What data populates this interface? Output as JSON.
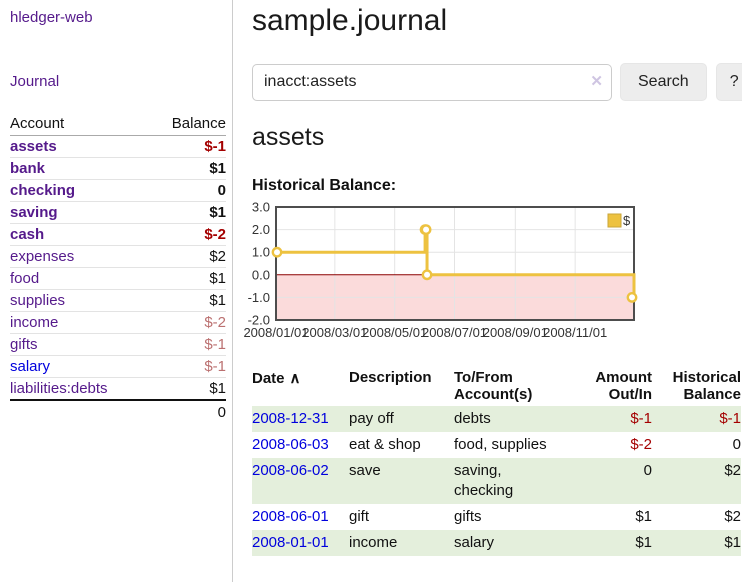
{
  "app": {
    "brand": "hledger-web",
    "nav": {
      "journal": "Journal"
    }
  },
  "sidebar": {
    "header": {
      "account": "Account",
      "balance": "Balance"
    },
    "accounts": [
      {
        "name": "assets",
        "balance": "$-1"
      },
      {
        "name": "bank",
        "balance": "$1"
      },
      {
        "name": "checking",
        "balance": "0"
      },
      {
        "name": "saving",
        "balance": "$1"
      },
      {
        "name": "cash",
        "balance": "$-2"
      },
      {
        "name": "expenses",
        "balance": "$2"
      },
      {
        "name": "food",
        "balance": "$1"
      },
      {
        "name": "supplies",
        "balance": "$1"
      },
      {
        "name": "income",
        "balance": "$-2"
      },
      {
        "name": "gifts",
        "balance": "$-1"
      },
      {
        "name": "salary",
        "balance": "$-1"
      },
      {
        "name": "liabilities:debts",
        "balance": "$1"
      }
    ],
    "total": "0"
  },
  "main": {
    "title": "sample.journal",
    "search": {
      "value": "inacct:assets",
      "clear": "✕",
      "button": "Search",
      "help": "?"
    },
    "heading": "assets",
    "chart_title": "Historical Balance:"
  },
  "chart_data": {
    "type": "line",
    "title": "Historical Balance",
    "x_start": "2008-01-01",
    "x_end": "2008-12-31",
    "ylim": [
      -2,
      3
    ],
    "yticks": [
      "3.0",
      "2.0",
      "1.0",
      "0.0",
      "-1.0",
      "-2.0"
    ],
    "xtick_labels": [
      "2008/01/01",
      "2008/03/01",
      "2008/05/01",
      "2008/07/01",
      "2008/09/01",
      "2008/11/01"
    ],
    "xtick_dates": [
      "2008-01-01",
      "2008-03-01",
      "2008-05-01",
      "2008-07-01",
      "2008-09-01",
      "2008-11-01"
    ],
    "series": [
      {
        "name": "$",
        "color": "#edc240",
        "steps": true,
        "points": [
          {
            "date": "2008-01-01",
            "value": 1
          },
          {
            "date": "2008-06-01",
            "value": 2
          },
          {
            "date": "2008-06-02",
            "value": 2
          },
          {
            "date": "2008-06-03",
            "value": 0
          },
          {
            "date": "2008-12-31",
            "value": -1
          }
        ]
      }
    ],
    "legend": {
      "position": "top-right",
      "label": "$"
    },
    "grid": true,
    "negative_region_fill": "#fbdbdb",
    "zero_line_color": "#8b0000"
  },
  "register": {
    "headers": {
      "date": "Date",
      "sort": "∧",
      "description": "Description",
      "tofrom": "To/From\nAccount(s)",
      "amount": "Amount\nOut/In",
      "balance": "Historical\nBalance"
    },
    "rows": [
      {
        "date": "2008-12-31",
        "description": "pay off",
        "accounts": "debts",
        "amount": "$-1",
        "balance": "$-1"
      },
      {
        "date": "2008-06-03",
        "description": "eat & shop",
        "accounts": "food, supplies",
        "amount": "$-2",
        "balance": "0"
      },
      {
        "date": "2008-06-02",
        "description": "save",
        "accounts": "saving,\nchecking",
        "amount": "0",
        "balance": "$2"
      },
      {
        "date": "2008-06-01",
        "description": "gift",
        "accounts": "gifts",
        "amount": "$1",
        "balance": "$2"
      },
      {
        "date": "2008-01-01",
        "description": "income",
        "accounts": "salary",
        "amount": "$1",
        "balance": "$1"
      }
    ]
  },
  "colors": {
    "link_purple": "#551a8b",
    "link_blue": "#0000dd",
    "negative_strong": "#a40000",
    "negative_soft": "#bb7070",
    "row_green": "#e4efdc",
    "chart_gold": "#edc240",
    "chart_negative_fill": "#fbdbdb",
    "chart_zero_line": "#8b0000",
    "chart_border": "#4d4d4d",
    "chart_grid": "#e4e4e4"
  }
}
